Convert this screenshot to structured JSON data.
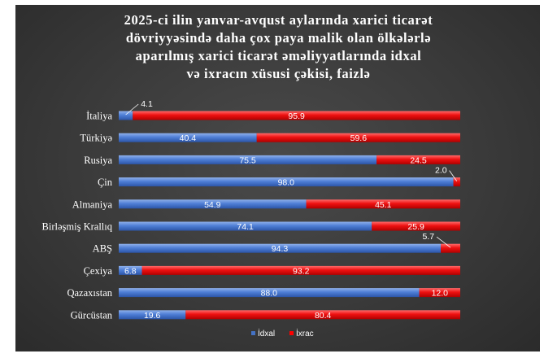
{
  "chart_data": {
    "type": "bar",
    "stacked": true,
    "orientation": "horizontal",
    "title_lines": [
      "2025-ci ilin yanvar-avqust  aylarında  xarici ticarət",
      "dövriyyəsində daha çox paya malik olan ölkələrlə",
      "aparılmış xarici ticarət əməliyyatlarında idxal",
      "və ixracın xüsusi çəkisi, faizlə"
    ],
    "categories": [
      "İtaliya",
      "Türkiyə",
      "Rusiya",
      "Çin",
      "Almaniya",
      "Birləşmiş Krallıq",
      "ABŞ",
      "Çexiya",
      "Qazaxıstan",
      "Gürcüstan"
    ],
    "series": [
      {
        "name": "İdxal",
        "color": "#4472c4",
        "values": [
          4.1,
          40.4,
          75.5,
          98.0,
          54.9,
          74.1,
          94.3,
          6.8,
          88.0,
          19.6
        ],
        "labels": [
          "4.1",
          "40.4",
          "75.5",
          "98.0",
          "54.9",
          "74.1",
          "94.3",
          "6.8",
          "88.0",
          "19.6"
        ]
      },
      {
        "name": "İxrac",
        "color": "#ff0000",
        "values": [
          95.9,
          59.6,
          24.5,
          2.0,
          45.1,
          25.9,
          5.7,
          93.2,
          12.0,
          80.4
        ],
        "labels": [
          "95.9",
          "59.6",
          "24.5",
          "2.0",
          "45.1",
          "25.9",
          "5.7",
          "93.2",
          "12.0",
          "80.4"
        ]
      }
    ],
    "xlim": [
      0,
      100
    ],
    "grid": false,
    "legend_position": "bottom"
  }
}
